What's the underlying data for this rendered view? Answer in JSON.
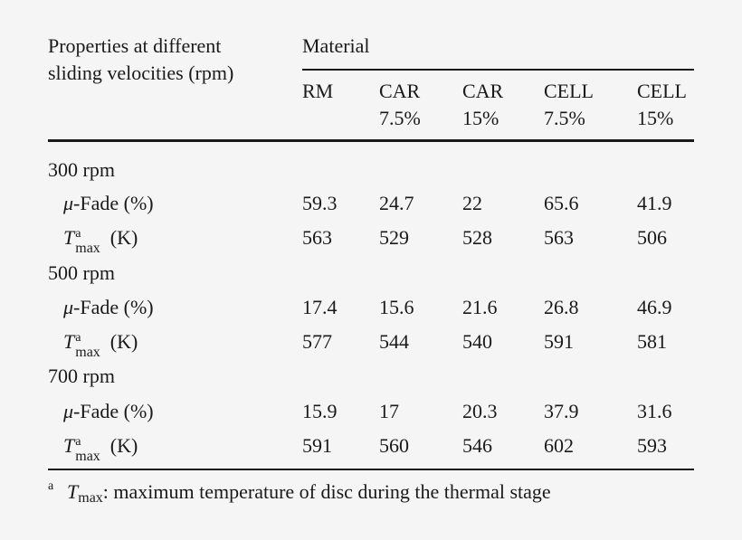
{
  "table": {
    "header": {
      "row_header_line1": "Properties at different",
      "row_header_line2": "sliding velocities (rpm)",
      "material_label": "Material",
      "columns": [
        {
          "line1": "RM",
          "line2": ""
        },
        {
          "line1": "CAR",
          "line2": "7.5%"
        },
        {
          "line1": "CAR",
          "line2": "15%"
        },
        {
          "line1": "CELL",
          "line2": "7.5%"
        },
        {
          "line1": "CELL",
          "line2": "15%"
        }
      ]
    },
    "groups": [
      {
        "label": "300 rpm",
        "fade_label_mu": "μ",
        "fade_label_rest": "-Fade (%)",
        "fade": [
          "59.3",
          "24.7",
          "22",
          "65.6",
          "41.9"
        ],
        "tmax_label_T": "T",
        "tmax_sup": "a",
        "tmax_sub": "max",
        "tmax_unit": "(K)",
        "tmax": [
          "563",
          "529",
          "528",
          "563",
          "506"
        ]
      },
      {
        "label": "500 rpm",
        "fade_label_mu": "μ",
        "fade_label_rest": "-Fade (%)",
        "fade": [
          "17.4",
          "15.6",
          "21.6",
          "26.8",
          "46.9"
        ],
        "tmax_label_T": "T",
        "tmax_sup": "a",
        "tmax_sub": "max",
        "tmax_unit": "(K)",
        "tmax": [
          "577",
          "544",
          "540",
          "591",
          "581"
        ]
      },
      {
        "label": "700 rpm",
        "fade_label_mu": "μ",
        "fade_label_rest": "-Fade (%)",
        "fade": [
          "15.9",
          "17",
          "20.3",
          "37.9",
          "31.6"
        ],
        "tmax_label_T": "T",
        "tmax_sup": "a",
        "tmax_sub": "max",
        "tmax_unit": "(K)",
        "tmax": [
          "591",
          "560",
          "546",
          "602",
          "593"
        ]
      }
    ],
    "footnote": {
      "marker": "a",
      "symbol_T": "T",
      "symbol_sub": "max",
      "text": ": maximum temperature of disc during the thermal stage"
    }
  }
}
